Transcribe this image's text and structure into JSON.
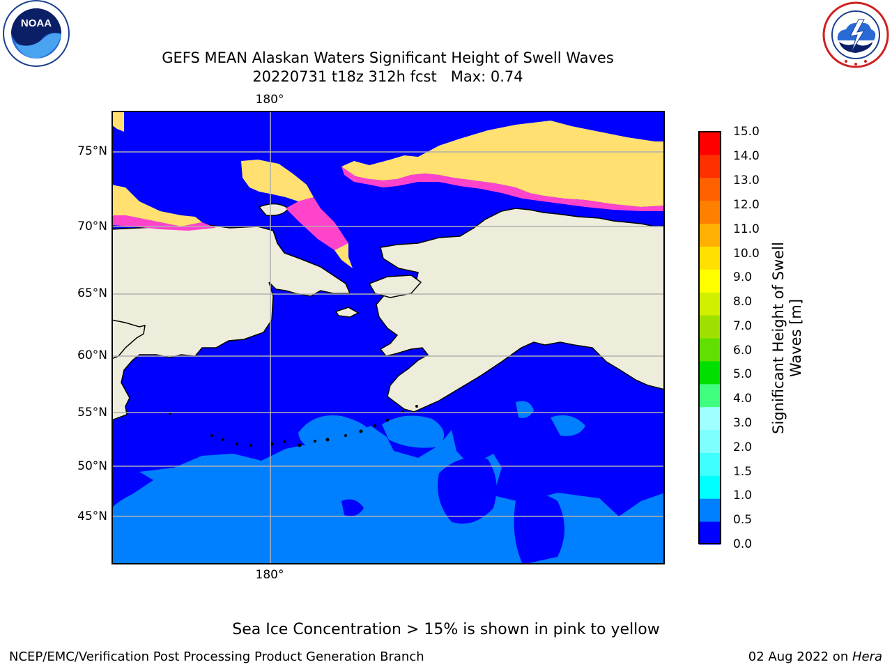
{
  "header": {
    "title_line1": "GEFS MEAN Alaskan Waters Significant Height of Swell Waves",
    "title_line2": "20220731 t18z 312h fcst   Max: 0.74"
  },
  "logos": {
    "noaa": {
      "icon": "noaa-logo-icon",
      "text": "NOAA"
    },
    "nws": {
      "icon": "nws-logo-icon"
    }
  },
  "map": {
    "lat_labels": [
      "75°N",
      "70°N",
      "65°N",
      "60°N",
      "55°N",
      "50°N",
      "45°N"
    ],
    "lon_label_top": "180°",
    "lon_label_bottom": "180°",
    "colors": {
      "ocean_low": "#0000ff",
      "ocean_mid": "#0080ff",
      "land": "#eeeddc",
      "ice_pink": "#ff44cc",
      "ice_yellow": "#ffe070",
      "grid": "#b0b0b0"
    }
  },
  "colorbar": {
    "label": "Significant Height of Swell Waves [m]",
    "label_line1": "Significant Height of Swell",
    "label_line2": "Waves [m]",
    "ticks": [
      "15.0",
      "14.0",
      "13.0",
      "12.0",
      "11.0",
      "10.0",
      "9.0",
      "8.0",
      "7.0",
      "6.0",
      "5.0",
      "4.0",
      "3.0",
      "2.0",
      "1.5",
      "1.0",
      "0.5",
      "0.0"
    ],
    "colors": [
      "#0000ff",
      "#0080ff",
      "#00ffff",
      "#40ffff",
      "#80ffff",
      "#a0ffff",
      "#40ff80",
      "#00e000",
      "#60e000",
      "#a0e000",
      "#d0f000",
      "#ffff00",
      "#ffe000",
      "#ffb000",
      "#ff8000",
      "#ff6000",
      "#ff3000",
      "#ff0000"
    ]
  },
  "footer": {
    "note": "Sea Ice Concentration > 15% is shown in pink to yellow",
    "branch": "NCEP/EMC/Verification Post Processing Product Generation Branch",
    "date_prefix": "02 Aug 2022 on ",
    "machine": "Hera"
  }
}
